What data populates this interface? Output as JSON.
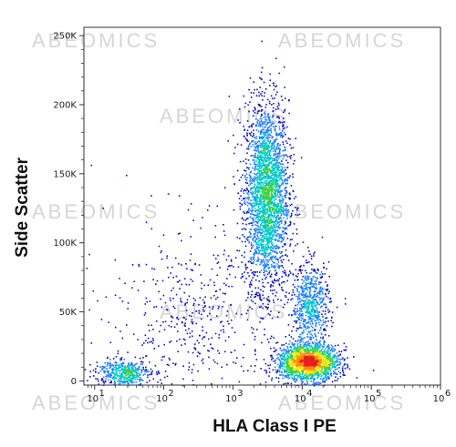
{
  "chart_data": {
    "type": "scatter",
    "subtype": "flow-cytometry-density-dot-plot",
    "xlabel": "HLA Class I PE",
    "ylabel": "Side Scatter",
    "x_scale": "log",
    "xlim": [
      7,
      1000000
    ],
    "ylim": [
      -3000,
      256000
    ],
    "x_ticks": [
      {
        "value": 10,
        "base": "10",
        "exp": "1"
      },
      {
        "value": 100,
        "base": "10",
        "exp": "2"
      },
      {
        "value": 1000,
        "base": "10",
        "exp": "3"
      },
      {
        "value": 10000,
        "base": "10",
        "exp": "4"
      },
      {
        "value": 100000,
        "base": "10",
        "exp": "5"
      },
      {
        "value": 1000000,
        "base": "10",
        "exp": "6"
      }
    ],
    "y_ticks": [
      {
        "value": 0,
        "label": "0"
      },
      {
        "value": 50000,
        "label": "50K"
      },
      {
        "value": 100000,
        "label": "100K"
      },
      {
        "value": 150000,
        "label": "150K"
      },
      {
        "value": 200000,
        "label": "200K"
      },
      {
        "value": 250000,
        "label": "250K"
      }
    ],
    "populations": [
      {
        "x_center": 3000,
        "y_center": 135000,
        "x_spread_log": 0.16,
        "y_spread": 34000,
        "count": 2600
      },
      {
        "x_center": 12000,
        "y_center": 14000,
        "x_spread_log": 0.22,
        "y_spread": 6500,
        "count": 1900
      },
      {
        "x_center": 13000,
        "y_center": 55000,
        "x_spread_log": 0.14,
        "y_spread": 15000,
        "count": 650
      },
      {
        "x_center": 25,
        "y_center": 6500,
        "x_spread_log": 0.2,
        "y_spread": 4500,
        "count": 450
      },
      {
        "x_center": 300,
        "y_center": 45000,
        "x_spread_log": 0.65,
        "y_spread": 35000,
        "count": 520
      }
    ],
    "color_scale": [
      "#0a12c8",
      "#1f7dff",
      "#00c8c8",
      "#3cd23c",
      "#f0e614",
      "#ff8c00",
      "#e61e1e"
    ],
    "grid": false,
    "legend": "none"
  },
  "watermark": {
    "text": "ABEOMICS"
  }
}
